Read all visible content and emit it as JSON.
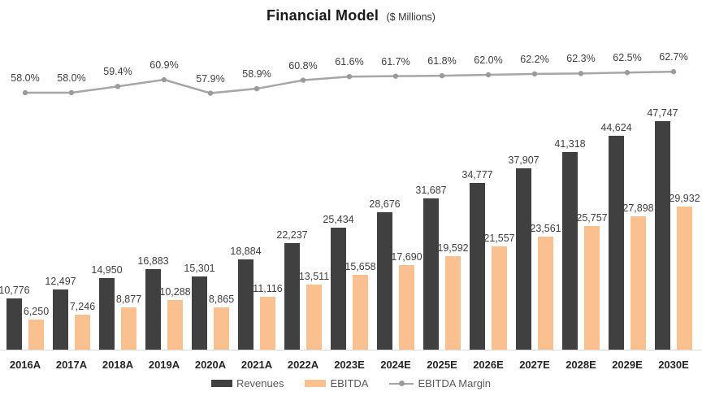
{
  "title": {
    "main": "Financial Model",
    "unit": "($ Millions)"
  },
  "legend": {
    "revenues": "Revenues",
    "ebitda": "EBITDA",
    "margin": "EBITDA Margin"
  },
  "colors": {
    "revenues": "#404040",
    "ebitda": "#FAC090",
    "margin_line": "#A6A6A6",
    "axis_line": "#D9D9D9",
    "label_text": "#404040",
    "x_label_text": "#262626",
    "legend_text": "#595959"
  },
  "chart_data": {
    "type": "bar",
    "subtype": "combo bar + line (secondary axis)",
    "title": "Financial Model ($ Millions)",
    "xlabel": "",
    "ylabel": "",
    "grid": false,
    "legend_position": "bottom",
    "axes_visible": false,
    "categories": [
      "2016A",
      "2017A",
      "2018A",
      "2019A",
      "2020A",
      "2021A",
      "2022A",
      "2023E",
      "2024E",
      "2025E",
      "2026E",
      "2027E",
      "2028E",
      "2029E",
      "2030E"
    ],
    "series": [
      {
        "name": "Revenues",
        "type": "bar",
        "color": "#404040",
        "values": [
          10776,
          12497,
          14950,
          16883,
          15301,
          18884,
          22237,
          25434,
          28676,
          31687,
          34777,
          37907,
          41318,
          44624,
          47747
        ],
        "labels": [
          "10,776",
          "12,497",
          "14,950",
          "16,883",
          "15,301",
          "18,884",
          "22,237",
          "25,434",
          "28,676",
          "31,687",
          "34,777",
          "37,907",
          "41,318",
          "44,624",
          "47,747"
        ]
      },
      {
        "name": "EBITDA",
        "type": "bar",
        "color": "#FAC090",
        "values": [
          6250,
          7246,
          8877,
          10288,
          8865,
          11116,
          13511,
          15658,
          17690,
          19592,
          21557,
          23561,
          25757,
          27898,
          29932
        ],
        "labels": [
          "6,250",
          "7,246",
          "8,877",
          "10,288",
          "8,865",
          "11,116",
          "13,511",
          "15,658",
          "17,690",
          "19,592",
          "21,557",
          "23,561",
          "25,757",
          "27,898",
          "29,932"
        ]
      },
      {
        "name": "EBITDA Margin",
        "type": "line",
        "axis": "secondary",
        "color": "#A6A6A6",
        "values": [
          58.0,
          58.0,
          59.4,
          60.9,
          57.9,
          58.9,
          60.8,
          61.6,
          61.7,
          61.8,
          62.0,
          62.2,
          62.3,
          62.5,
          62.7
        ],
        "labels": [
          "58.0%",
          "58.0%",
          "59.4%",
          "60.9%",
          "57.9%",
          "58.9%",
          "60.8%",
          "61.6%",
          "61.7%",
          "61.8%",
          "62.0%",
          "62.2%",
          "62.3%",
          "62.5%",
          "62.7%"
        ]
      }
    ]
  }
}
